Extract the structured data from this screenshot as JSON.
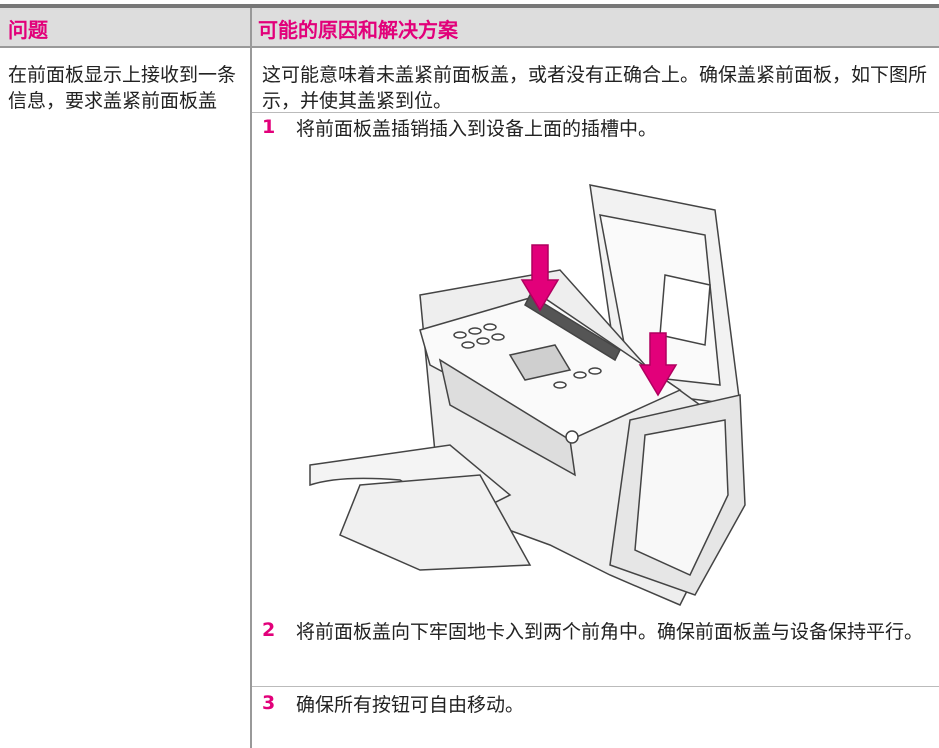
{
  "table": {
    "header": [
      "问题",
      "可能的原因和解决方案"
    ],
    "row": {
      "problem": "在前面板显示上接收到一条信息，要求盖紧前面板盖",
      "intro": "这可能意味着未盖紧前面板盖，或者没有正确合上。确保盖紧前面板，如下图所示，并使其盖紧到位。",
      "steps": [
        {
          "number": "1",
          "text": "将前面板盖插销插入到设备上面的插槽中。"
        },
        {
          "number": "2",
          "text": "将前面板盖向下牢固地卡入到两个前角中。确保前面板盖与设备保持平行。"
        },
        {
          "number": "3",
          "text": "确保所有按钮可自由移动。"
        }
      ]
    }
  }
}
